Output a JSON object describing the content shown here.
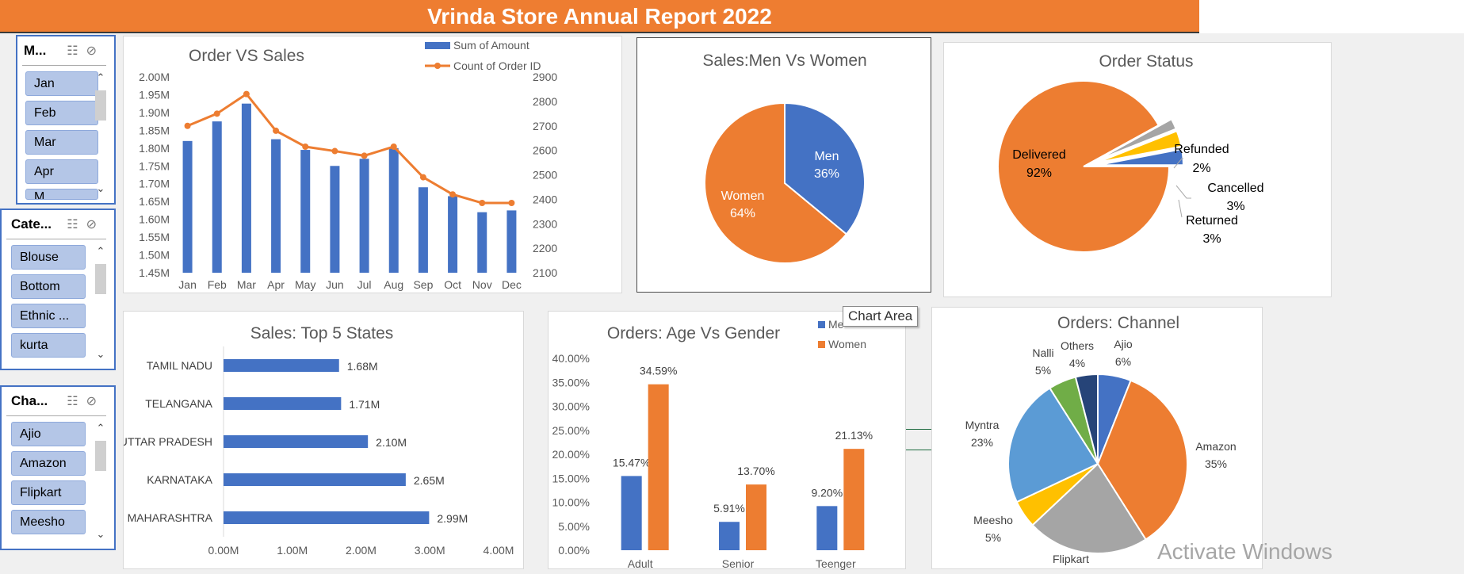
{
  "report": {
    "title": "Vrinda Store Annual Report 2022",
    "watermark": "Activate Windows",
    "tooltip": "Chart Area"
  },
  "slicers": [
    {
      "header": "M...",
      "items": [
        "Jan",
        "Feb",
        "Mar",
        "Apr",
        "M..."
      ]
    },
    {
      "header": "Cate...",
      "items": [
        "Blouse",
        "Bottom",
        "Ethnic ...",
        "kurta"
      ]
    },
    {
      "header": "Cha...",
      "items": [
        "Ajio",
        "Amazon",
        "Flipkart",
        "Meesho"
      ]
    }
  ],
  "colors": {
    "blue": "#4472c4",
    "orange": "#ed7d31",
    "gray": "#a5a5a5",
    "yellow": "#ffc000",
    "lightblue": "#5b9bd5",
    "green": "#70ad47",
    "navy": "#264478"
  },
  "chart_data": [
    {
      "type": "bar",
      "title": "Order VS Sales",
      "categories": [
        "Jan",
        "Feb",
        "Mar",
        "Apr",
        "May",
        "Jun",
        "Jul",
        "Aug",
        "Sep",
        "Oct",
        "Nov",
        "Dec"
      ],
      "series": [
        {
          "name": "Sum of Amount",
          "type": "bar",
          "axis": "left",
          "values": [
            1.82,
            1.875,
            1.925,
            1.825,
            1.795,
            1.75,
            1.77,
            1.8,
            1.69,
            1.665,
            1.62,
            1.625
          ]
        },
        {
          "name": "Count of Order ID",
          "type": "line",
          "axis": "right",
          "values": [
            2700,
            2750,
            2830,
            2680,
            2615,
            2597,
            2578,
            2615,
            2490,
            2420,
            2385,
            2385
          ]
        }
      ],
      "y_left": {
        "min": 1.45,
        "max": 2.0,
        "ticks": [
          "2.00M",
          "1.95M",
          "1.90M",
          "1.85M",
          "1.80M",
          "1.75M",
          "1.70M",
          "1.65M",
          "1.60M",
          "1.55M",
          "1.50M",
          "1.45M"
        ]
      },
      "y_right": {
        "min": 2100,
        "max": 2900,
        "ticks": [
          "2900",
          "2800",
          "2700",
          "2600",
          "2500",
          "2400",
          "2300",
          "2200",
          "2100"
        ]
      },
      "legend": "top-right"
    },
    {
      "type": "pie",
      "title": "Sales:Men Vs Women",
      "slices": [
        {
          "label": "Men",
          "value": 36,
          "text": "36%",
          "color": "#4472c4"
        },
        {
          "label": "Women",
          "value": 64,
          "text": "64%",
          "color": "#ed7d31"
        }
      ]
    },
    {
      "type": "pie",
      "title": "Order Status",
      "slices": [
        {
          "label": "Delivered",
          "value": 92,
          "text": "92%",
          "color": "#ed7d31"
        },
        {
          "label": "Refunded",
          "value": 2,
          "text": "2%",
          "color": "#a5a5a5"
        },
        {
          "label": "Cancelled",
          "value": 3,
          "text": "3%",
          "color": "#ffc000"
        },
        {
          "label": "Returned",
          "value": 3,
          "text": "3%",
          "color": "#4472c4"
        }
      ]
    },
    {
      "type": "bar",
      "orientation": "horizontal",
      "title": "Sales: Top 5 States",
      "categories": [
        "TAMIL NADU",
        "TELANGANA",
        "UTTAR PRADESH",
        "KARNATAKA",
        "MAHARASHTRA"
      ],
      "values": [
        1.68,
        1.71,
        2.1,
        2.65,
        2.99
      ],
      "labels": [
        "1.68M",
        "1.71M",
        "2.10M",
        "2.65M",
        "2.99M"
      ],
      "xlim": [
        0,
        4
      ],
      "ticks": [
        "0.00M",
        "1.00M",
        "2.00M",
        "3.00M",
        "4.00M"
      ]
    },
    {
      "type": "bar",
      "title": "Orders: Age Vs Gender",
      "categories": [
        "Adult",
        "Senior",
        "Teenger"
      ],
      "series": [
        {
          "name": "Men",
          "values": [
            15.47,
            5.91,
            9.2
          ],
          "labels": [
            "15.47%",
            "5.91%",
            "9.20%"
          ]
        },
        {
          "name": "Women",
          "values": [
            34.59,
            13.7,
            21.13
          ],
          "labels": [
            "34.59%",
            "13.70%",
            "21.13%"
          ]
        }
      ],
      "ylim": [
        0,
        40
      ],
      "ticks": [
        "40.00%",
        "35.00%",
        "30.00%",
        "25.00%",
        "20.00%",
        "15.00%",
        "10.00%",
        "5.00%",
        "0.00%"
      ],
      "legend": "top-right",
      "legend_labels": [
        "Me",
        "Women"
      ]
    },
    {
      "type": "pie",
      "title": "Orders: Channel",
      "slices": [
        {
          "label": "Ajio",
          "value": 6,
          "text": "6%",
          "color": "#4472c4"
        },
        {
          "label": "Amazon",
          "value": 35,
          "text": "35%",
          "color": "#ed7d31"
        },
        {
          "label": "Flipkart",
          "value": 22,
          "text": "",
          "color": "#a5a5a5"
        },
        {
          "label": "Meesho",
          "value": 5,
          "text": "5%",
          "color": "#ffc000"
        },
        {
          "label": "Myntra",
          "value": 23,
          "text": "23%",
          "color": "#5b9bd5"
        },
        {
          "label": "Nalli",
          "value": 5,
          "text": "5%",
          "color": "#70ad47"
        },
        {
          "label": "Others",
          "value": 4,
          "text": "4%",
          "color": "#264478"
        }
      ]
    }
  ]
}
